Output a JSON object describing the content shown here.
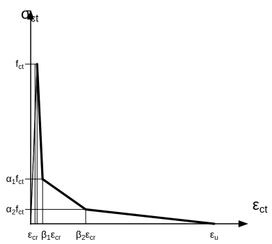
{
  "chart_data": {
    "type": "line",
    "title": "",
    "ylabel": {
      "main": "σ",
      "sub": "ct"
    },
    "xlabel": {
      "main": "ε",
      "sub": "ct"
    },
    "grid": false,
    "legend": "none",
    "line_color": "#000000",
    "ylim": [
      0,
      1
    ],
    "xlim": [
      0,
      1
    ],
    "series": [
      {
        "points": [
          {
            "x": 0.0,
            "y": 0.0
          },
          {
            "x": 0.035,
            "y": 1.0
          },
          {
            "x": 0.065,
            "y": 0.28
          },
          {
            "x": 0.3,
            "y": 0.09
          },
          {
            "x": 1.0,
            "y": 0.0
          }
        ]
      }
    ],
    "y_ticks": [
      {
        "y": 1.0,
        "prefix": "",
        "prefix_sub": "",
        "main": "f",
        "sub": "ct"
      },
      {
        "y": 0.28,
        "prefix": "α",
        "prefix_sub": "1",
        "main": "f",
        "sub": "ct"
      },
      {
        "y": 0.09,
        "prefix": "α",
        "prefix_sub": "2",
        "main": "f",
        "sub": "ct"
      }
    ],
    "x_ticks": [
      {
        "x": 0.035,
        "prefix": "",
        "prefix_sub": "",
        "main": "ε",
        "sub": "cr"
      },
      {
        "x": 0.065,
        "prefix": "β",
        "prefix_sub": "1",
        "main": "ε",
        "sub": "cr"
      },
      {
        "x": 0.3,
        "prefix": "β",
        "prefix_sub": "2",
        "main": "ε",
        "sub": "cr"
      },
      {
        "x": 1.0,
        "prefix": "",
        "prefix_sub": "",
        "main": "ε",
        "sub": "u"
      }
    ]
  }
}
